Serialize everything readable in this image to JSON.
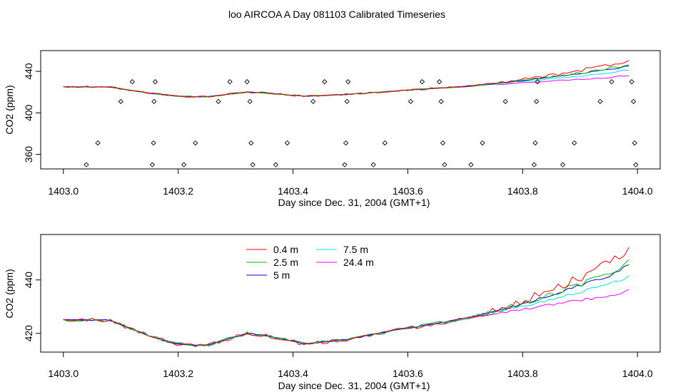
{
  "title": "loo AIRCOA A  Day 081103  Calibrated Timeseries",
  "chart_data": [
    {
      "type": "line",
      "xlabel": "Day since Dec. 31, 2004 (GMT+1)",
      "ylabel": "CO2 (ppm)",
      "xlim": [
        1403.0,
        1404.0
      ],
      "ylim": [
        346,
        460
      ],
      "xticks": [
        "1403.0",
        "1403.2",
        "1403.4",
        "1403.6",
        "1403.8",
        "1404.0"
      ],
      "yticks": [
        "360",
        "400",
        "440"
      ],
      "series_colors": {
        "0.4 m": "#ff0000",
        "2.5 m": "#00c000",
        "5 m": "#0000ff",
        "7.5 m": "#00e0e0",
        "24.4 m": "#ff00ff"
      },
      "points": [
        {
          "x": 1403.04,
          "y": 350
        },
        {
          "x": 1403.06,
          "y": 371
        },
        {
          "x": 1403.1,
          "y": 411
        },
        {
          "x": 1403.12,
          "y": 430
        },
        {
          "x": 1403.155,
          "y": 350
        },
        {
          "x": 1403.157,
          "y": 371
        },
        {
          "x": 1403.158,
          "y": 411
        },
        {
          "x": 1403.16,
          "y": 430
        },
        {
          "x": 1403.21,
          "y": 350
        },
        {
          "x": 1403.23,
          "y": 371
        },
        {
          "x": 1403.27,
          "y": 411
        },
        {
          "x": 1403.29,
          "y": 430
        },
        {
          "x": 1403.32,
          "y": 430
        },
        {
          "x": 1403.325,
          "y": 411
        },
        {
          "x": 1403.327,
          "y": 371
        },
        {
          "x": 1403.33,
          "y": 350
        },
        {
          "x": 1403.37,
          "y": 350
        },
        {
          "x": 1403.39,
          "y": 371
        },
        {
          "x": 1403.435,
          "y": 411
        },
        {
          "x": 1403.455,
          "y": 430
        },
        {
          "x": 1403.49,
          "y": 350
        },
        {
          "x": 1403.492,
          "y": 371
        },
        {
          "x": 1403.494,
          "y": 411
        },
        {
          "x": 1403.496,
          "y": 430
        },
        {
          "x": 1403.54,
          "y": 350
        },
        {
          "x": 1403.56,
          "y": 371
        },
        {
          "x": 1403.605,
          "y": 411
        },
        {
          "x": 1403.625,
          "y": 430
        },
        {
          "x": 1403.655,
          "y": 430
        },
        {
          "x": 1403.658,
          "y": 411
        },
        {
          "x": 1403.661,
          "y": 371
        },
        {
          "x": 1403.664,
          "y": 350
        },
        {
          "x": 1403.71,
          "y": 350
        },
        {
          "x": 1403.73,
          "y": 371
        },
        {
          "x": 1403.77,
          "y": 411
        },
        {
          "x": 1403.82,
          "y": 350
        },
        {
          "x": 1403.822,
          "y": 371
        },
        {
          "x": 1403.824,
          "y": 411
        },
        {
          "x": 1403.826,
          "y": 430
        },
        {
          "x": 1403.87,
          "y": 350
        },
        {
          "x": 1403.89,
          "y": 371
        },
        {
          "x": 1403.935,
          "y": 411
        },
        {
          "x": 1403.955,
          "y": 430
        },
        {
          "x": 1403.99,
          "y": 430
        },
        {
          "x": 1403.993,
          "y": 411
        },
        {
          "x": 1403.995,
          "y": 371
        },
        {
          "x": 1403.997,
          "y": 350
        }
      ]
    },
    {
      "type": "line",
      "xlabel": "Day since Dec. 31, 2004 (GMT+1)",
      "ylabel": "CO2 (ppm)",
      "xlim": [
        1403.0,
        1404.0
      ],
      "ylim": [
        413,
        457
      ],
      "xticks": [
        "1403.0",
        "1403.2",
        "1403.4",
        "1403.6",
        "1403.8",
        "1404.0"
      ],
      "yticks": [
        "420",
        "440"
      ],
      "legend": "top-left",
      "series": [
        {
          "name": "0.4 m",
          "color": "#ff0000"
        },
        {
          "name": "2.5 m",
          "color": "#00c000"
        },
        {
          "name": "5 m",
          "color": "#0000ff"
        },
        {
          "name": "7.5 m",
          "color": "#00e0e0"
        },
        {
          "name": "24.4 m",
          "color": "#ff00ff"
        }
      ]
    }
  ]
}
